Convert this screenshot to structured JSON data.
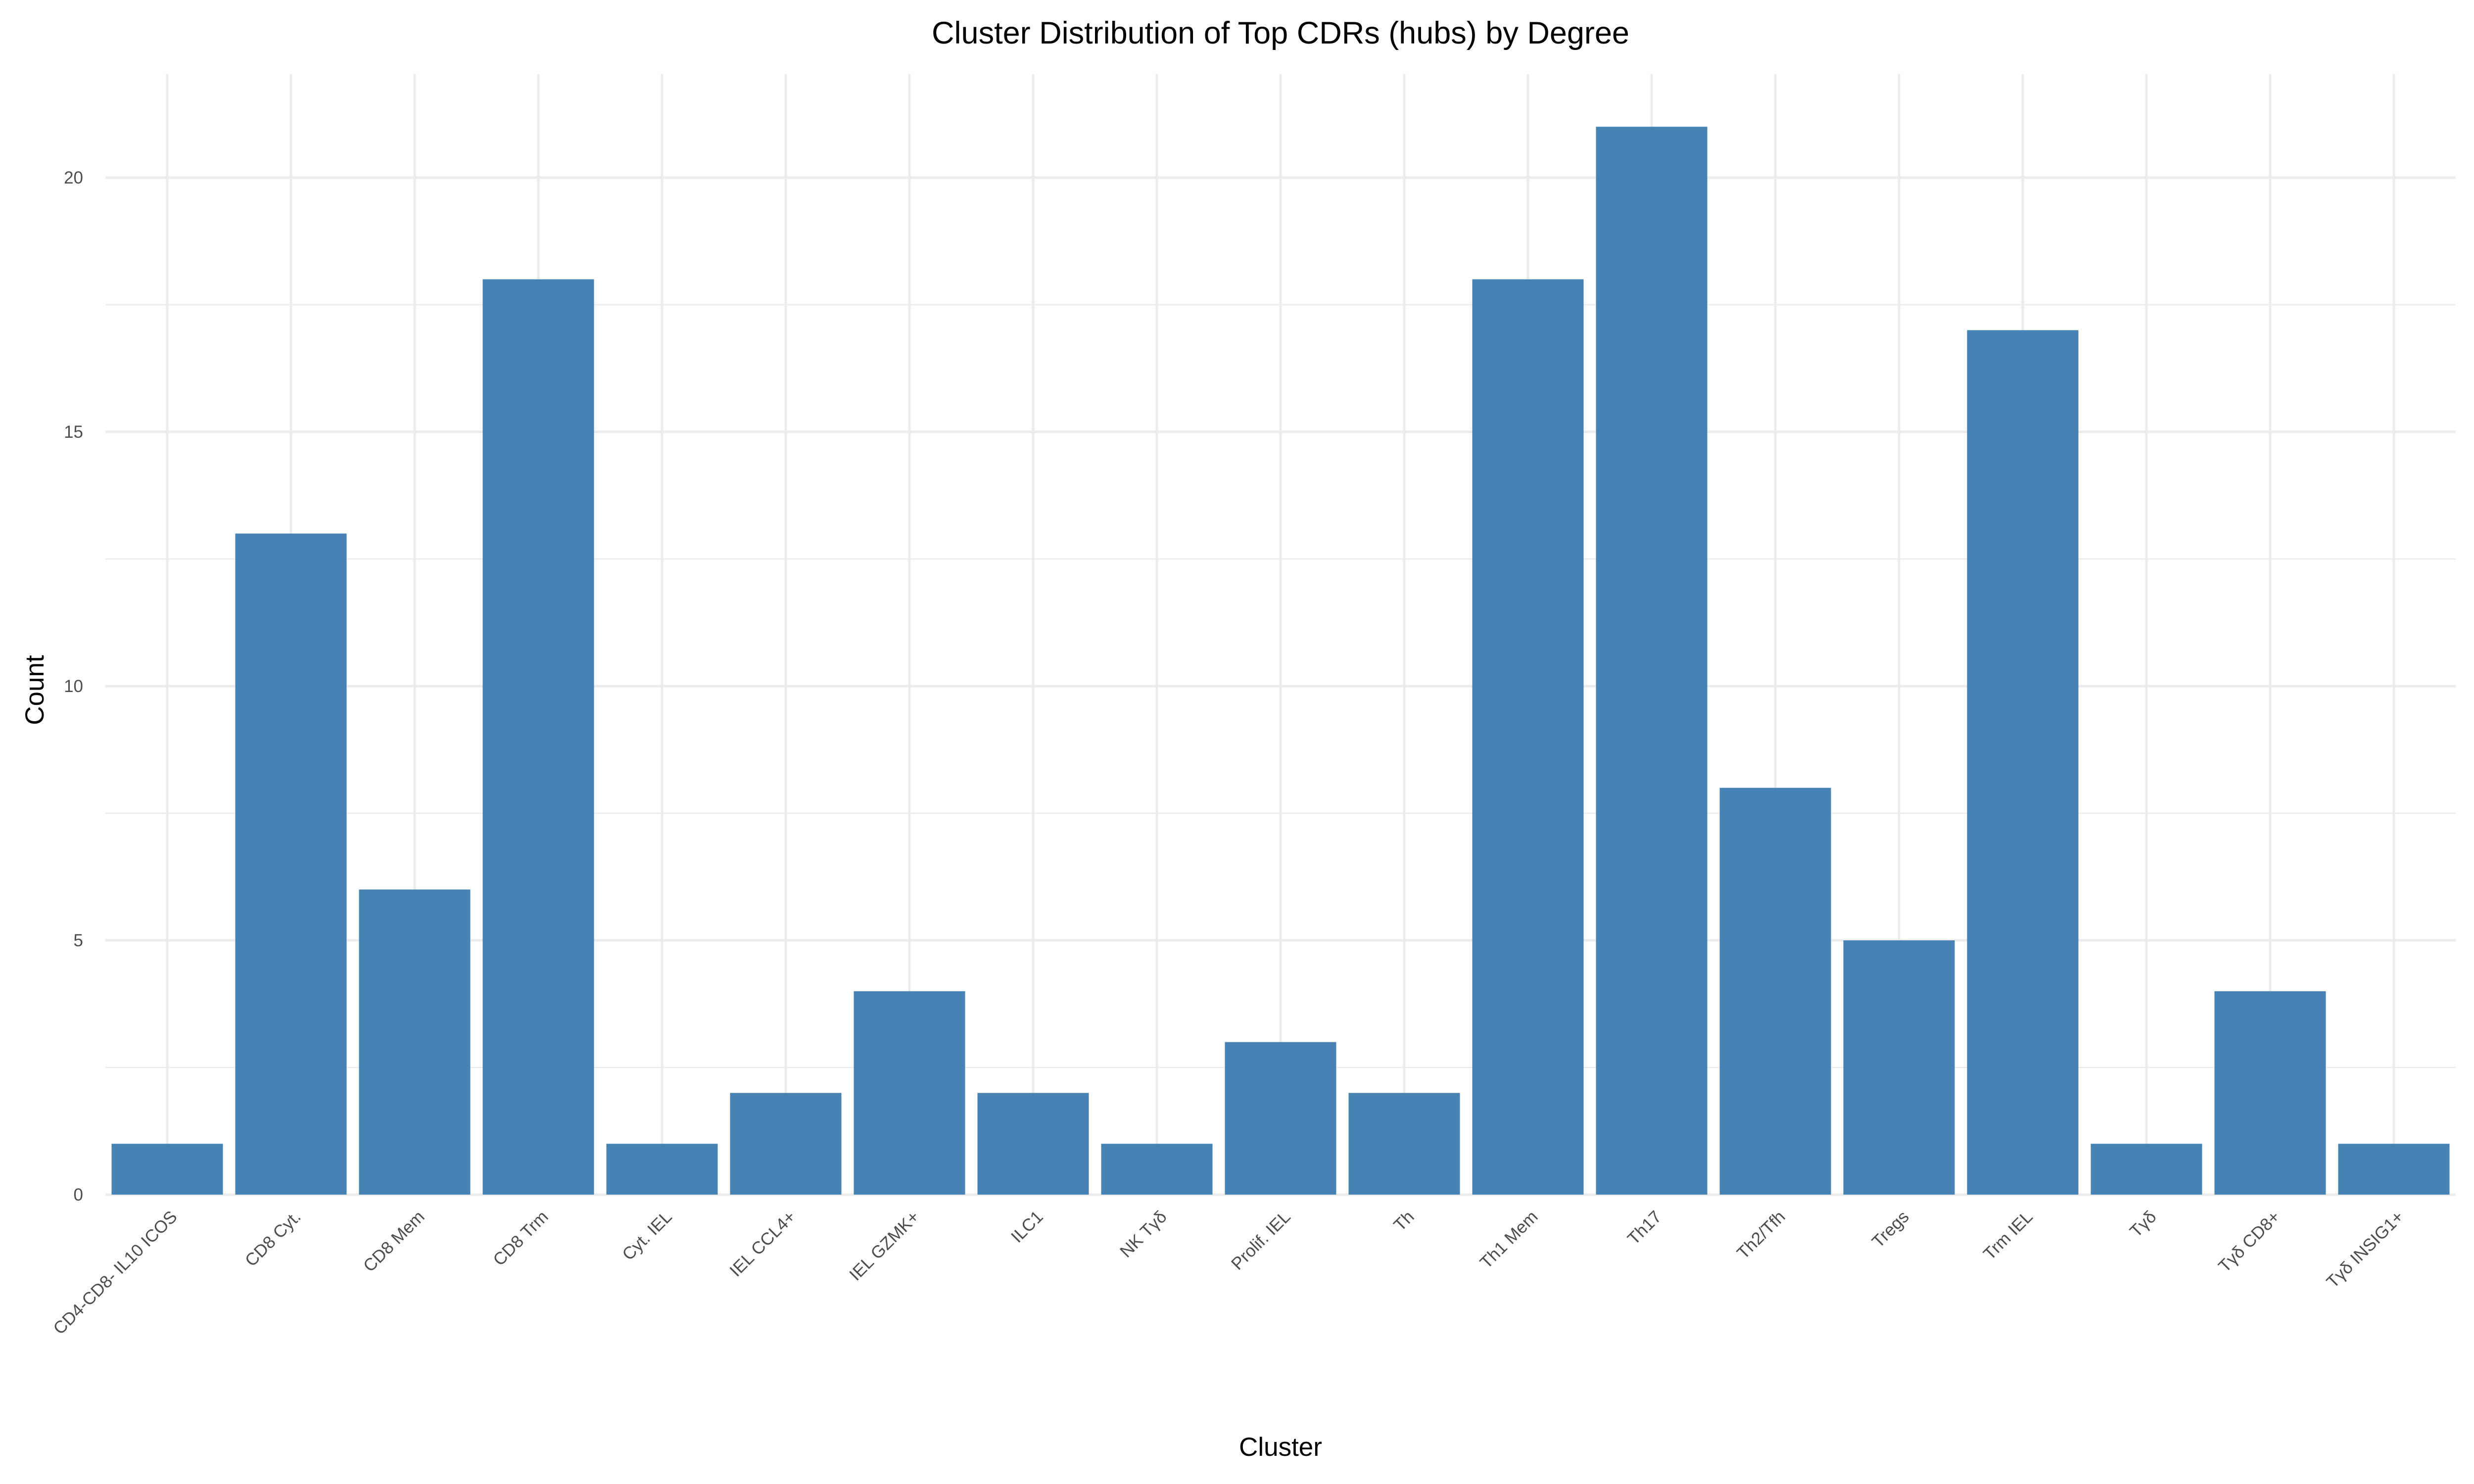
{
  "chart_data": {
    "type": "bar",
    "title": "Cluster Distribution of Top CDRs (hubs) by Degree",
    "xlabel": "Cluster",
    "ylabel": "Count",
    "categories": [
      "CD4-CD8- IL10 ICOS",
      "CD8 Cyt.",
      "CD8 Mem",
      "CD8 Trm",
      "Cyt. IEL",
      "IEL CCL4+",
      "IEL GZMK+",
      "ILC1",
      "NK Tγδ",
      "Prolif. IEL",
      "Th",
      "Th1 Mem",
      "Th17",
      "Th2/Tfh",
      "Tregs",
      "Trm IEL",
      "Tγδ",
      "Tγδ CD8+",
      "Tγδ INSIG1+"
    ],
    "values": [
      1,
      13,
      6,
      18,
      1,
      2,
      4,
      2,
      1,
      3,
      2,
      18,
      21,
      8,
      5,
      17,
      1,
      4,
      1
    ],
    "ylim": [
      0,
      22
    ],
    "yticks": [
      0,
      5,
      10,
      15,
      20
    ],
    "grid": true,
    "bar_color": "#4682b4",
    "legend": "none"
  }
}
